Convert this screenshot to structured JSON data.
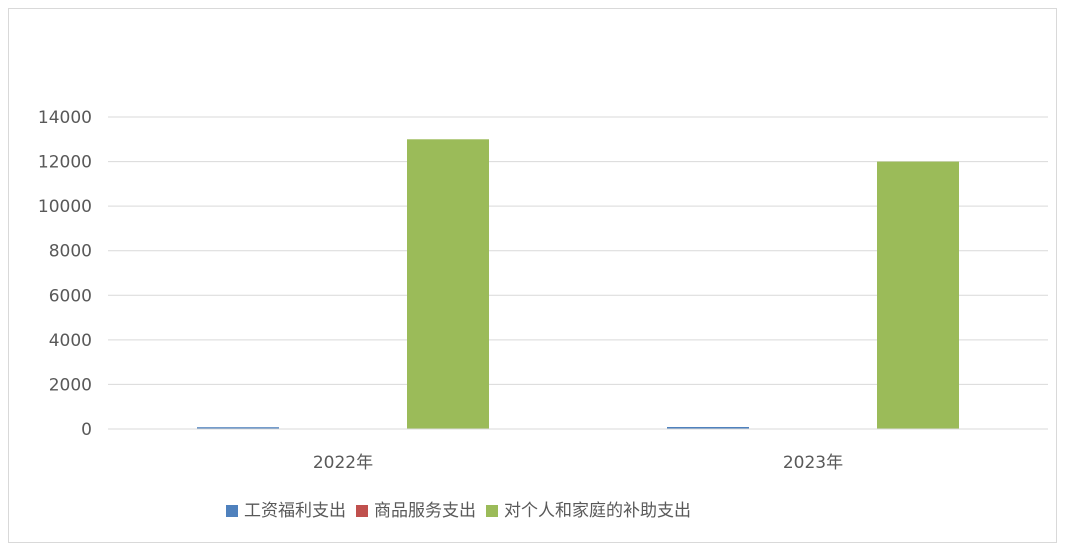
{
  "chart_data": {
    "type": "bar",
    "categories": [
      "2022年",
      "2023年"
    ],
    "series": [
      {
        "name": "工资福利支出",
        "color": "#4f81bd",
        "values": [
          80,
          90
        ]
      },
      {
        "name": "商品服务支出",
        "color": "#c0504d",
        "values": [
          0,
          0
        ]
      },
      {
        "name": "对个人和家庭的补助支出",
        "color": "#9bbb59",
        "values": [
          13000,
          12000
        ]
      }
    ],
    "ylim": [
      0,
      14000
    ],
    "yticks": [
      0,
      2000,
      4000,
      6000,
      8000,
      10000,
      12000,
      14000
    ],
    "grid": true,
    "legend": "bottom",
    "title": "",
    "xlabel": "",
    "ylabel": ""
  }
}
